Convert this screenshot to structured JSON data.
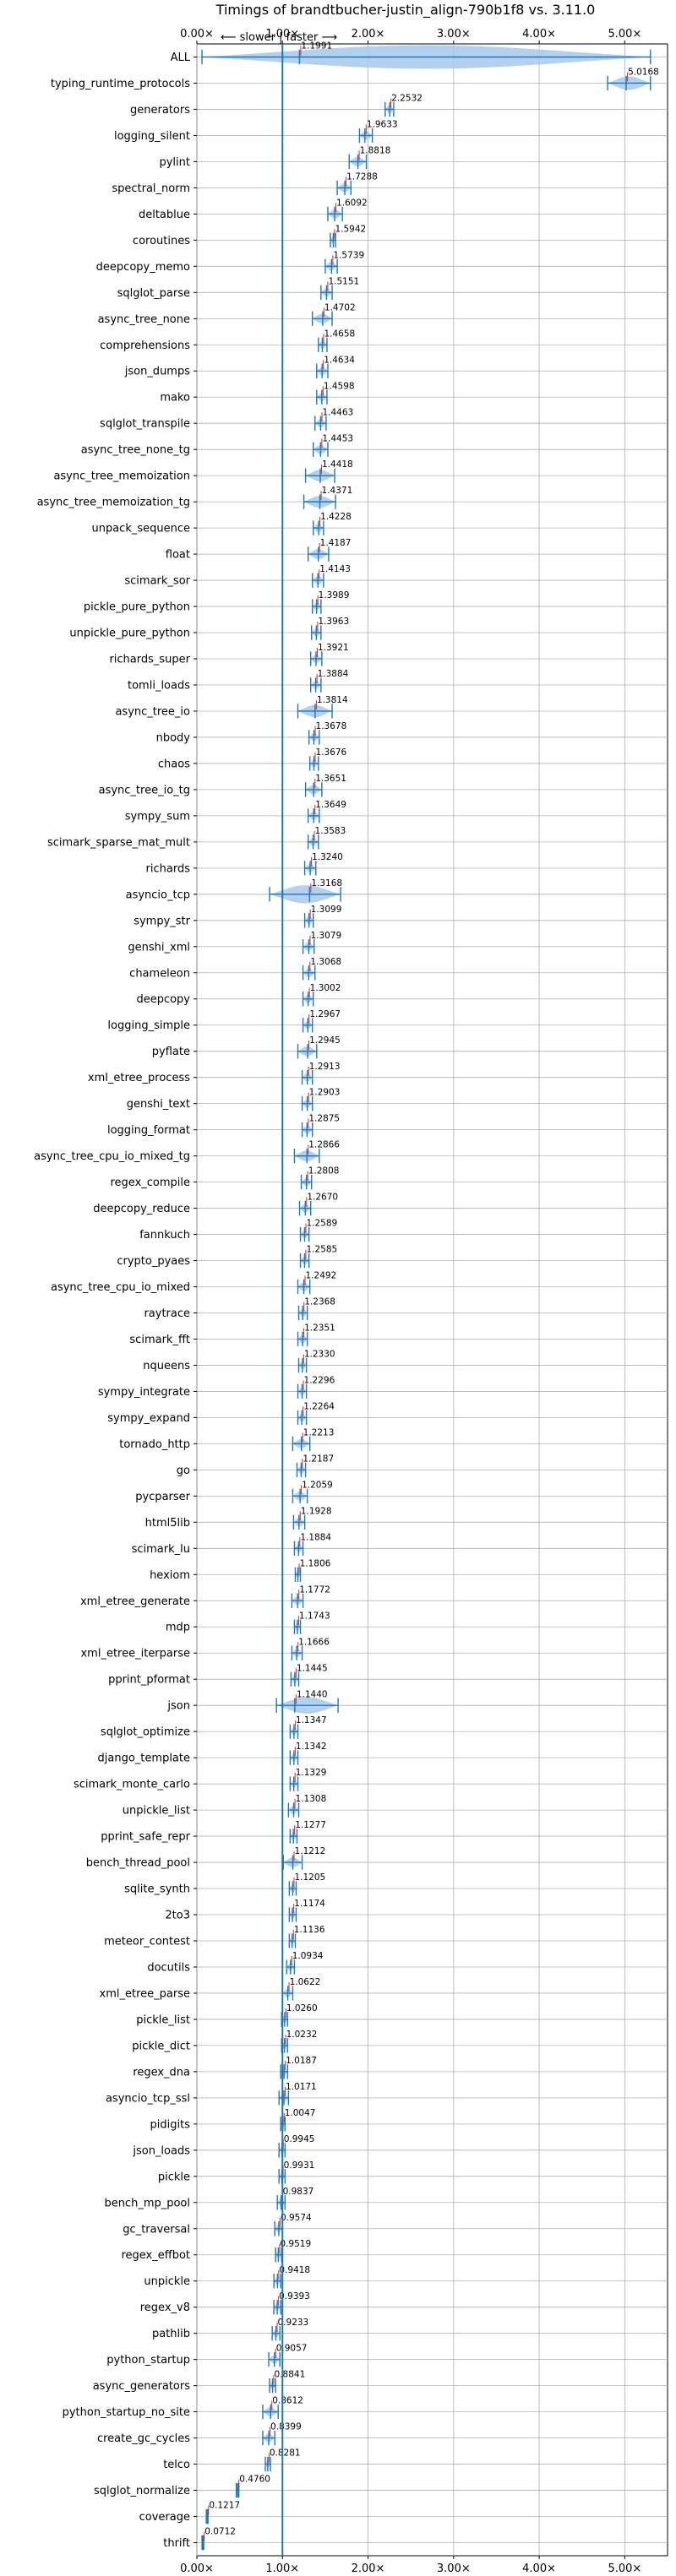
{
  "chart_data": {
    "type": "violin",
    "title": "Timings of brandtbucher-justin_align-790b1f8 vs. 3.11.0",
    "direction_note": "⟵ slower | faster ⟶",
    "xlim": [
      0,
      5.5
    ],
    "xticks": [
      0,
      1,
      2,
      3,
      4,
      5
    ],
    "xtick_labels": [
      "0.00×",
      "1.00×",
      "2.00×",
      "3.00×",
      "4.00×",
      "5.00×"
    ],
    "reference_line": 1.0,
    "grid": true,
    "colors": {
      "body": "#a6c9ec",
      "line": "#1f77b4",
      "ref": "#1f77b4",
      "median": "#d62728",
      "grid": "#b0b0b0"
    },
    "benchmarks": [
      {
        "name": "ALL",
        "value": 1.1991,
        "lo": 0.06,
        "hi": 5.3
      },
      {
        "name": "typing_runtime_protocols",
        "value": 5.0168,
        "lo": 4.8,
        "hi": 5.3
      },
      {
        "name": "generators",
        "value": 2.2532,
        "lo": 2.2,
        "hi": 2.3
      },
      {
        "name": "logging_silent",
        "value": 1.9633,
        "lo": 1.9,
        "hi": 2.05
      },
      {
        "name": "pylint",
        "value": 1.8818,
        "lo": 1.78,
        "hi": 1.98
      },
      {
        "name": "spectral_norm",
        "value": 1.7288,
        "lo": 1.64,
        "hi": 1.8
      },
      {
        "name": "deltablue",
        "value": 1.6092,
        "lo": 1.53,
        "hi": 1.7
      },
      {
        "name": "coroutines",
        "value": 1.5942,
        "lo": 1.56,
        "hi": 1.62
      },
      {
        "name": "deepcopy_memo",
        "value": 1.5739,
        "lo": 1.5,
        "hi": 1.64
      },
      {
        "name": "sqlglot_parse",
        "value": 1.5151,
        "lo": 1.45,
        "hi": 1.58
      },
      {
        "name": "async_tree_none",
        "value": 1.4702,
        "lo": 1.35,
        "hi": 1.58
      },
      {
        "name": "comprehensions",
        "value": 1.4658,
        "lo": 1.42,
        "hi": 1.52
      },
      {
        "name": "json_dumps",
        "value": 1.4634,
        "lo": 1.4,
        "hi": 1.53
      },
      {
        "name": "mako",
        "value": 1.4598,
        "lo": 1.4,
        "hi": 1.52
      },
      {
        "name": "sqlglot_transpile",
        "value": 1.4463,
        "lo": 1.38,
        "hi": 1.51
      },
      {
        "name": "async_tree_none_tg",
        "value": 1.4453,
        "lo": 1.36,
        "hi": 1.53
      },
      {
        "name": "async_tree_memoization",
        "value": 1.4418,
        "lo": 1.27,
        "hi": 1.61
      },
      {
        "name": "async_tree_memoization_tg",
        "value": 1.4371,
        "lo": 1.25,
        "hi": 1.62
      },
      {
        "name": "unpack_sequence",
        "value": 1.4228,
        "lo": 1.36,
        "hi": 1.48
      },
      {
        "name": "float",
        "value": 1.4187,
        "lo": 1.3,
        "hi": 1.54
      },
      {
        "name": "scimark_sor",
        "value": 1.4143,
        "lo": 1.35,
        "hi": 1.48
      },
      {
        "name": "pickle_pure_python",
        "value": 1.3989,
        "lo": 1.35,
        "hi": 1.45
      },
      {
        "name": "unpickle_pure_python",
        "value": 1.3963,
        "lo": 1.34,
        "hi": 1.45
      },
      {
        "name": "richards_super",
        "value": 1.3921,
        "lo": 1.33,
        "hi": 1.46
      },
      {
        "name": "tomli_loads",
        "value": 1.3884,
        "lo": 1.33,
        "hi": 1.45
      },
      {
        "name": "async_tree_io",
        "value": 1.3814,
        "lo": 1.18,
        "hi": 1.58
      },
      {
        "name": "nbody",
        "value": 1.3678,
        "lo": 1.31,
        "hi": 1.43
      },
      {
        "name": "chaos",
        "value": 1.3676,
        "lo": 1.32,
        "hi": 1.42
      },
      {
        "name": "async_tree_io_tg",
        "value": 1.3651,
        "lo": 1.27,
        "hi": 1.46
      },
      {
        "name": "sympy_sum",
        "value": 1.3649,
        "lo": 1.3,
        "hi": 1.43
      },
      {
        "name": "scimark_sparse_mat_mult",
        "value": 1.3583,
        "lo": 1.3,
        "hi": 1.42
      },
      {
        "name": "richards",
        "value": 1.324,
        "lo": 1.26,
        "hi": 1.39
      },
      {
        "name": "asyncio_tcp",
        "value": 1.3168,
        "lo": 0.85,
        "hi": 1.68
      },
      {
        "name": "sympy_str",
        "value": 1.3099,
        "lo": 1.26,
        "hi": 1.36
      },
      {
        "name": "genshi_xml",
        "value": 1.3079,
        "lo": 1.24,
        "hi": 1.37
      },
      {
        "name": "chameleon",
        "value": 1.3068,
        "lo": 1.24,
        "hi": 1.38
      },
      {
        "name": "deepcopy",
        "value": 1.3002,
        "lo": 1.24,
        "hi": 1.36
      },
      {
        "name": "logging_simple",
        "value": 1.2967,
        "lo": 1.24,
        "hi": 1.35
      },
      {
        "name": "pyflate",
        "value": 1.2945,
        "lo": 1.18,
        "hi": 1.4
      },
      {
        "name": "xml_etree_process",
        "value": 1.2913,
        "lo": 1.23,
        "hi": 1.35
      },
      {
        "name": "genshi_text",
        "value": 1.2903,
        "lo": 1.23,
        "hi": 1.35
      },
      {
        "name": "logging_format",
        "value": 1.2875,
        "lo": 1.23,
        "hi": 1.35
      },
      {
        "name": "async_tree_cpu_io_mixed_tg",
        "value": 1.2866,
        "lo": 1.14,
        "hi": 1.43
      },
      {
        "name": "regex_compile",
        "value": 1.2808,
        "lo": 1.22,
        "hi": 1.34
      },
      {
        "name": "deepcopy_reduce",
        "value": 1.267,
        "lo": 1.2,
        "hi": 1.33
      },
      {
        "name": "fannkuch",
        "value": 1.2589,
        "lo": 1.21,
        "hi": 1.31
      },
      {
        "name": "crypto_pyaes",
        "value": 1.2585,
        "lo": 1.21,
        "hi": 1.31
      },
      {
        "name": "async_tree_cpu_io_mixed",
        "value": 1.2492,
        "lo": 1.18,
        "hi": 1.32
      },
      {
        "name": "raytrace",
        "value": 1.2368,
        "lo": 1.19,
        "hi": 1.29
      },
      {
        "name": "scimark_fft",
        "value": 1.2351,
        "lo": 1.18,
        "hi": 1.29
      },
      {
        "name": "nqueens",
        "value": 1.233,
        "lo": 1.19,
        "hi": 1.28
      },
      {
        "name": "sympy_integrate",
        "value": 1.2296,
        "lo": 1.18,
        "hi": 1.28
      },
      {
        "name": "sympy_expand",
        "value": 1.2264,
        "lo": 1.18,
        "hi": 1.28
      },
      {
        "name": "tornado_http",
        "value": 1.2213,
        "lo": 1.12,
        "hi": 1.32
      },
      {
        "name": "go",
        "value": 1.2187,
        "lo": 1.17,
        "hi": 1.27
      },
      {
        "name": "pycparser",
        "value": 1.2059,
        "lo": 1.12,
        "hi": 1.29
      },
      {
        "name": "html5lib",
        "value": 1.1928,
        "lo": 1.13,
        "hi": 1.26
      },
      {
        "name": "scimark_lu",
        "value": 1.1884,
        "lo": 1.14,
        "hi": 1.24
      },
      {
        "name": "hexiom",
        "value": 1.1806,
        "lo": 1.15,
        "hi": 1.21
      },
      {
        "name": "xml_etree_generate",
        "value": 1.1772,
        "lo": 1.11,
        "hi": 1.24
      },
      {
        "name": "mdp",
        "value": 1.1743,
        "lo": 1.14,
        "hi": 1.21
      },
      {
        "name": "xml_etree_iterparse",
        "value": 1.1666,
        "lo": 1.11,
        "hi": 1.23
      },
      {
        "name": "pprint_pformat",
        "value": 1.1445,
        "lo": 1.1,
        "hi": 1.19
      },
      {
        "name": "json",
        "value": 1.144,
        "lo": 0.93,
        "hi": 1.65
      },
      {
        "name": "sqlglot_optimize",
        "value": 1.1347,
        "lo": 1.09,
        "hi": 1.18
      },
      {
        "name": "django_template",
        "value": 1.1342,
        "lo": 1.09,
        "hi": 1.18
      },
      {
        "name": "scimark_monte_carlo",
        "value": 1.1329,
        "lo": 1.09,
        "hi": 1.18
      },
      {
        "name": "unpickle_list",
        "value": 1.1308,
        "lo": 1.07,
        "hi": 1.19
      },
      {
        "name": "pprint_safe_repr",
        "value": 1.1277,
        "lo": 1.09,
        "hi": 1.17
      },
      {
        "name": "bench_thread_pool",
        "value": 1.1212,
        "lo": 1.01,
        "hi": 1.23
      },
      {
        "name": "sqlite_synth",
        "value": 1.1205,
        "lo": 1.08,
        "hi": 1.16
      },
      {
        "name": "2to3",
        "value": 1.1174,
        "lo": 1.08,
        "hi": 1.16
      },
      {
        "name": "meteor_contest",
        "value": 1.1136,
        "lo": 1.08,
        "hi": 1.15
      },
      {
        "name": "docutils",
        "value": 1.0934,
        "lo": 1.05,
        "hi": 1.14
      },
      {
        "name": "xml_etree_parse",
        "value": 1.0622,
        "lo": 1.0,
        "hi": 1.12
      },
      {
        "name": "pickle_list",
        "value": 1.026,
        "lo": 0.99,
        "hi": 1.06
      },
      {
        "name": "pickle_dict",
        "value": 1.0232,
        "lo": 0.99,
        "hi": 1.06
      },
      {
        "name": "regex_dna",
        "value": 1.0187,
        "lo": 0.98,
        "hi": 1.06
      },
      {
        "name": "asyncio_tcp_ssl",
        "value": 1.0171,
        "lo": 0.96,
        "hi": 1.07
      },
      {
        "name": "pidigits",
        "value": 1.0047,
        "lo": 0.98,
        "hi": 1.03
      },
      {
        "name": "json_loads",
        "value": 0.9945,
        "lo": 0.96,
        "hi": 1.03
      },
      {
        "name": "pickle",
        "value": 0.9931,
        "lo": 0.96,
        "hi": 1.03
      },
      {
        "name": "bench_mp_pool",
        "value": 0.9837,
        "lo": 0.94,
        "hi": 1.03
      },
      {
        "name": "gc_traversal",
        "value": 0.9574,
        "lo": 0.91,
        "hi": 1.0
      },
      {
        "name": "regex_effbot",
        "value": 0.9519,
        "lo": 0.92,
        "hi": 0.99
      },
      {
        "name": "unpickle",
        "value": 0.9418,
        "lo": 0.9,
        "hi": 0.98
      },
      {
        "name": "regex_v8",
        "value": 0.9393,
        "lo": 0.9,
        "hi": 0.98
      },
      {
        "name": "pathlib",
        "value": 0.9233,
        "lo": 0.88,
        "hi": 0.97
      },
      {
        "name": "python_startup",
        "value": 0.9057,
        "lo": 0.84,
        "hi": 0.97
      },
      {
        "name": "async_generators",
        "value": 0.8841,
        "lo": 0.85,
        "hi": 0.92
      },
      {
        "name": "python_startup_no_site",
        "value": 0.8612,
        "lo": 0.77,
        "hi": 0.95
      },
      {
        "name": "create_gc_cycles",
        "value": 0.8399,
        "lo": 0.77,
        "hi": 0.91
      },
      {
        "name": "telco",
        "value": 0.8281,
        "lo": 0.8,
        "hi": 0.86
      },
      {
        "name": "sqlglot_normalize",
        "value": 0.476,
        "lo": 0.46,
        "hi": 0.49
      },
      {
        "name": "coverage",
        "value": 0.1217,
        "lo": 0.11,
        "hi": 0.13
      },
      {
        "name": "thrift",
        "value": 0.0712,
        "lo": 0.06,
        "hi": 0.08
      }
    ]
  }
}
